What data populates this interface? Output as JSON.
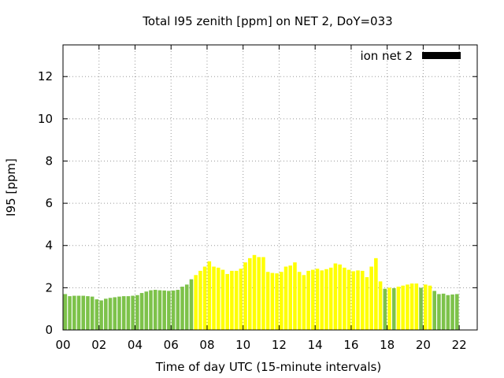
{
  "chart_data": {
    "type": "bar",
    "title": "Total I95 zenith [ppm] on NET 2, DoY=033",
    "xlabel": "Time of day UTC (15-minute intervals)",
    "ylabel": "I95 [ppm]",
    "xlim": [
      0,
      23
    ],
    "ylim": [
      0,
      13.5
    ],
    "x_ticks": [
      "00",
      "02",
      "04",
      "06",
      "08",
      "10",
      "12",
      "14",
      "16",
      "18",
      "20",
      "22"
    ],
    "y_ticks": [
      "0",
      "2",
      "4",
      "6",
      "8",
      "10",
      "12"
    ],
    "grid": true,
    "legend": {
      "position": "top-right",
      "entries": [
        {
          "name": "ion net 2",
          "color": "#000000"
        }
      ]
    },
    "colors": {
      "green": "#7dc24a",
      "yellow": "#ffff00",
      "legend": "#000000"
    },
    "bar_interval_hours": 0.25,
    "values": [
      1.7,
      1.6,
      1.62,
      1.62,
      1.62,
      1.6,
      1.58,
      1.45,
      1.4,
      1.48,
      1.52,
      1.55,
      1.58,
      1.6,
      1.6,
      1.62,
      1.65,
      1.75,
      1.82,
      1.88,
      1.9,
      1.88,
      1.87,
      1.85,
      1.87,
      1.9,
      2.05,
      2.15,
      2.4,
      2.6,
      2.8,
      3.0,
      3.25,
      3.0,
      2.95,
      2.85,
      2.65,
      2.8,
      2.8,
      2.9,
      3.2,
      3.4,
      3.55,
      3.45,
      3.45,
      2.75,
      2.7,
      2.68,
      2.75,
      3.0,
      3.05,
      3.2,
      2.75,
      2.6,
      2.8,
      2.85,
      2.9,
      2.82,
      2.88,
      2.95,
      3.15,
      3.1,
      2.95,
      2.85,
      2.78,
      2.82,
      2.8,
      2.5,
      3.0,
      3.4,
      2.3,
      1.95,
      2.0,
      1.98,
      2.05,
      2.1,
      2.15,
      2.2,
      2.2,
      2.0,
      2.15,
      2.1,
      1.85,
      1.7,
      1.72,
      1.65,
      1.68,
      1.7
    ],
    "colors_per_bar": [
      "green",
      "green",
      "green",
      "green",
      "green",
      "green",
      "green",
      "green",
      "green",
      "green",
      "green",
      "green",
      "green",
      "green",
      "green",
      "green",
      "green",
      "green",
      "green",
      "green",
      "green",
      "green",
      "green",
      "green",
      "green",
      "green",
      "green",
      "green",
      "green",
      "yellow",
      "yellow",
      "yellow",
      "yellow",
      "yellow",
      "yellow",
      "yellow",
      "yellow",
      "yellow",
      "yellow",
      "yellow",
      "yellow",
      "yellow",
      "yellow",
      "yellow",
      "yellow",
      "yellow",
      "yellow",
      "yellow",
      "yellow",
      "yellow",
      "yellow",
      "yellow",
      "yellow",
      "yellow",
      "yellow",
      "yellow",
      "yellow",
      "yellow",
      "yellow",
      "yellow",
      "yellow",
      "yellow",
      "yellow",
      "yellow",
      "yellow",
      "yellow",
      "yellow",
      "yellow",
      "yellow",
      "yellow",
      "yellow",
      "green",
      "yellow",
      "green",
      "yellow",
      "yellow",
      "yellow",
      "yellow",
      "yellow",
      "green",
      "yellow",
      "yellow",
      "green",
      "green",
      "green",
      "green",
      "green",
      "green"
    ]
  }
}
